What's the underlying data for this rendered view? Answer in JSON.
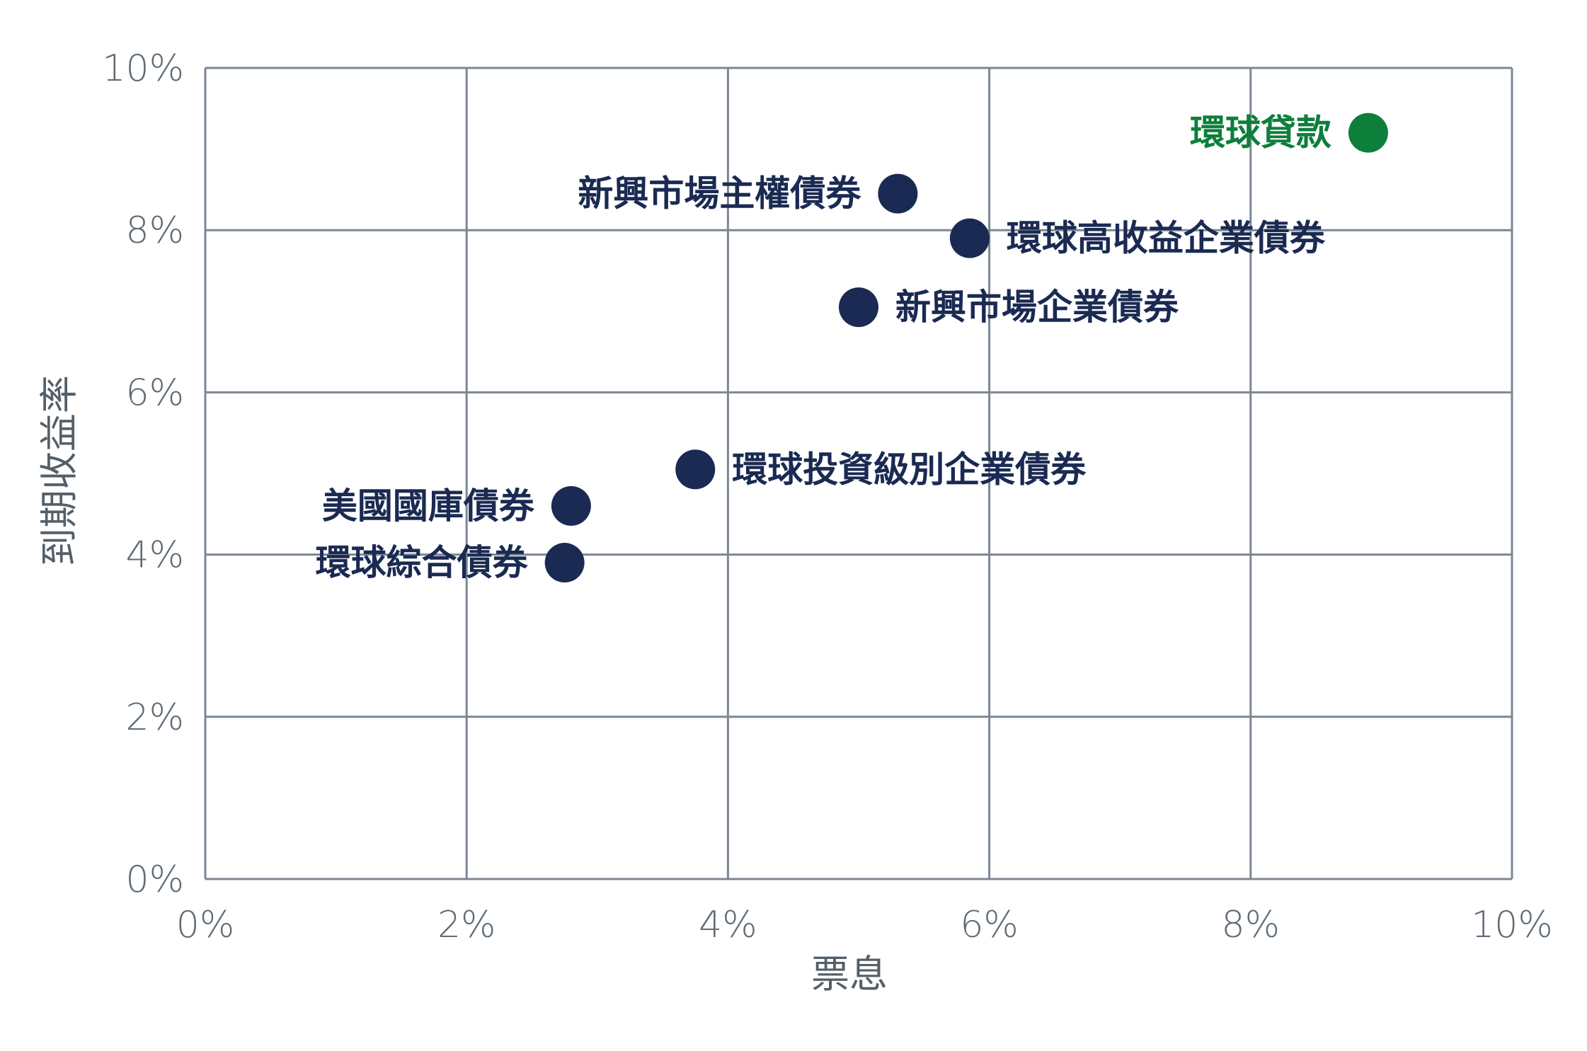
{
  "chart_data": {
    "type": "scatter",
    "title": "",
    "xlabel": "票息",
    "ylabel": "到期收益率",
    "xlim": [
      0,
      10
    ],
    "ylim": [
      0,
      10
    ],
    "x_ticks": [
      "0%",
      "2%",
      "4%",
      "6%",
      "8%",
      "10%"
    ],
    "y_ticks": [
      "0%",
      "2%",
      "4%",
      "6%",
      "8%",
      "10%"
    ],
    "grid": true,
    "points": [
      {
        "label": "環球貸款",
        "x": 8.9,
        "y": 9.2,
        "color": "#0d7f3b",
        "label_side": "left"
      },
      {
        "label": "新興市場主權債券",
        "x": 5.3,
        "y": 8.45,
        "color": "#1a2a52",
        "label_side": "left"
      },
      {
        "label": "環球高收益企業債券",
        "x": 5.85,
        "y": 7.9,
        "color": "#1a2a52",
        "label_side": "right"
      },
      {
        "label": "新興市場企業債券",
        "x": 5.0,
        "y": 7.05,
        "color": "#1a2a52",
        "label_side": "right"
      },
      {
        "label": "環球投資級別企業債券",
        "x": 3.75,
        "y": 5.05,
        "color": "#1a2a52",
        "label_side": "right"
      },
      {
        "label": "美國國庫債券",
        "x": 2.8,
        "y": 4.6,
        "color": "#1a2a52",
        "label_side": "left"
      },
      {
        "label": "環球綜合債券",
        "x": 2.75,
        "y": 3.9,
        "color": "#1a2a52",
        "label_side": "left"
      }
    ]
  },
  "colors": {
    "grid": "#7b8792",
    "tick_text": "#5f6b75",
    "highlight": "#0d7f3b",
    "default_point": "#1a2a52"
  }
}
